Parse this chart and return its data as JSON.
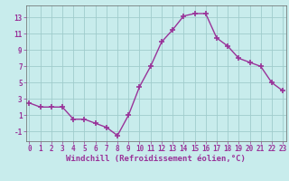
{
  "x": [
    0,
    1,
    2,
    3,
    4,
    5,
    6,
    7,
    8,
    9,
    10,
    11,
    12,
    13,
    14,
    15,
    16,
    17,
    18,
    19,
    20,
    21,
    22,
    23
  ],
  "y": [
    2.5,
    2.0,
    2.0,
    2.0,
    0.5,
    0.5,
    0.0,
    -0.5,
    -1.5,
    1.0,
    4.5,
    7.0,
    10.0,
    11.5,
    13.2,
    13.5,
    13.5,
    10.5,
    9.5,
    8.0,
    7.5,
    7.0,
    5.0,
    4.0
  ],
  "line_color": "#993399",
  "marker": "+",
  "marker_size": 4,
  "marker_lw": 1.2,
  "line_width": 1.0,
  "bg_color": "#c8ecec",
  "grid_color": "#a0cccc",
  "xlabel": "Windchill (Refroidissement éolien,°C)",
  "xlabel_fontsize": 6.5,
  "yticks": [
    -1,
    1,
    3,
    5,
    7,
    9,
    11,
    13
  ],
  "xticks": [
    0,
    1,
    2,
    3,
    4,
    5,
    6,
    7,
    8,
    9,
    10,
    11,
    12,
    13,
    14,
    15,
    16,
    17,
    18,
    19,
    20,
    21,
    22,
    23
  ],
  "ylim": [
    -2.2,
    14.5
  ],
  "xlim": [
    -0.3,
    23.3
  ],
  "tick_fontsize": 5.5,
  "label_color": "#993399",
  "spine_color": "#666666"
}
